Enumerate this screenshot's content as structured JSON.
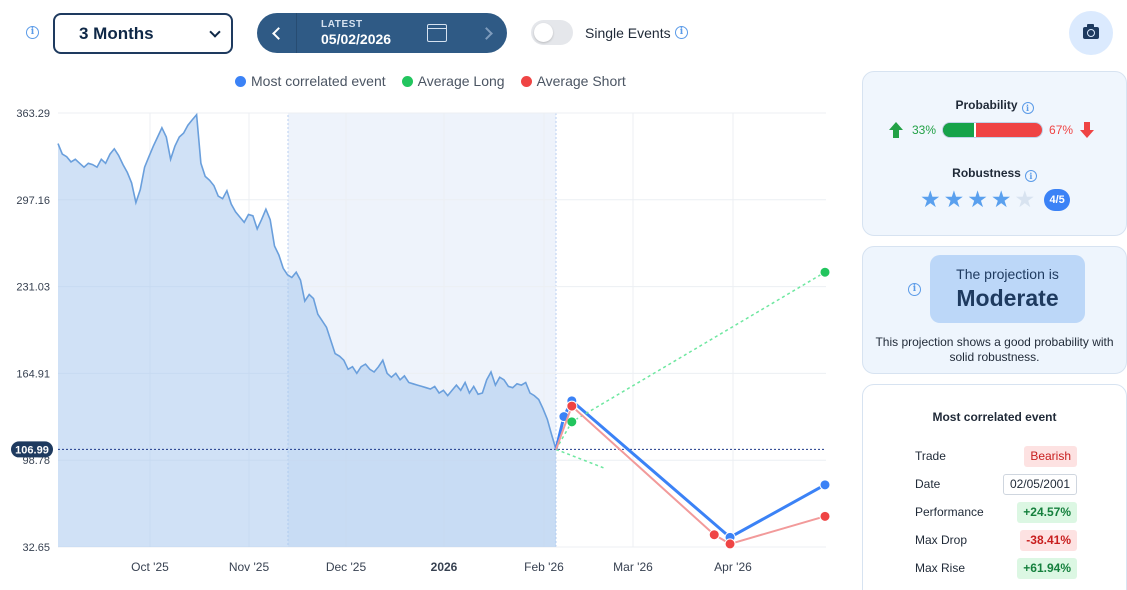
{
  "toolbar": {
    "period_select": "3 Months",
    "date_nav": {
      "label": "LATEST",
      "date": "05/02/2026"
    },
    "single_events_label": "Single Events",
    "single_events_on": false
  },
  "legend": [
    {
      "label": "Most correlated event",
      "color": "#3b82f6"
    },
    {
      "label": "Average Long",
      "color": "#22c55e"
    },
    {
      "label": "Average Short",
      "color": "#ef4444"
    }
  ],
  "chart_data": {
    "type": "line",
    "y_ticks": [
      "363.29",
      "297.16",
      "231.03",
      "164.91",
      "98.78",
      "32.65"
    ],
    "x_ticks": [
      "Oct '25",
      "Nov '25",
      "Dec '25",
      "2026",
      "Feb '26",
      "Mar '26",
      "Apr '26"
    ],
    "current_value": "106.99",
    "ylim": [
      32.65,
      363.29
    ],
    "price_history": [
      340,
      332,
      330,
      326,
      328,
      325,
      322,
      325,
      324,
      322,
      328,
      325,
      332,
      336,
      331,
      324,
      318,
      310,
      295,
      305,
      322,
      330,
      338,
      345,
      352,
      345,
      328,
      338,
      345,
      348,
      354,
      358,
      362,
      325,
      315,
      312,
      308,
      300,
      298,
      304,
      294,
      288,
      284,
      280,
      286,
      285,
      275,
      282,
      290,
      282,
      262,
      255,
      245,
      240,
      238,
      242,
      236,
      220,
      225,
      222,
      210,
      205,
      200,
      190,
      180,
      178,
      175,
      168,
      170,
      165,
      170,
      172,
      168,
      166,
      170,
      175,
      165,
      162,
      165,
      160,
      163,
      158,
      157,
      156,
      155,
      154,
      153,
      155,
      150,
      152,
      148,
      152,
      156,
      152,
      158,
      150,
      155,
      149,
      150,
      160,
      166,
      156,
      162,
      160,
      155,
      154,
      157,
      156,
      158,
      150,
      148,
      145,
      138,
      130,
      118,
      106.99
    ],
    "series": [
      {
        "name": "Most correlated event",
        "color": "#3b82f6",
        "points": [
          [
            0,
            106.99
          ],
          [
            0.5,
            132
          ],
          [
            1,
            144
          ],
          [
            11,
            40
          ],
          [
            17,
            80
          ]
        ]
      },
      {
        "name": "Average Long",
        "color": "#22c55e",
        "points": [
          [
            0,
            106.99
          ],
          [
            1,
            128
          ],
          [
            17,
            242
          ]
        ]
      },
      {
        "name": "Average Short",
        "color": "#ef4444",
        "points": [
          [
            0,
            106.99
          ],
          [
            1,
            140
          ],
          [
            10,
            42
          ],
          [
            11,
            35
          ],
          [
            17,
            56
          ]
        ]
      }
    ],
    "avg_long_detour": [
      [
        0,
        106.99
      ],
      [
        3,
        93
      ]
    ]
  },
  "probability": {
    "title": "Probability",
    "long_pct": "33%",
    "short_pct": "67%",
    "long_fraction": 0.33
  },
  "robustness": {
    "title": "Robustness",
    "stars_filled": 4,
    "stars_total": 5,
    "badge": "4/5"
  },
  "projection": {
    "line1": "The projection is",
    "line2": "Moderate",
    "description": "This projection shows a good probability with solid robustness."
  },
  "correlated": {
    "title": "Most correlated event",
    "rows": [
      {
        "label": "Trade",
        "value": "Bearish",
        "style": "red"
      },
      {
        "label": "Date",
        "value": "02/05/2001",
        "style": "box"
      },
      {
        "label": "Performance",
        "value": "+24.57%",
        "style": "green"
      },
      {
        "label": "Max Drop",
        "value": "-38.41%",
        "style": "redb"
      },
      {
        "label": "Max Rise",
        "value": "+61.94%",
        "style": "green"
      }
    ]
  }
}
